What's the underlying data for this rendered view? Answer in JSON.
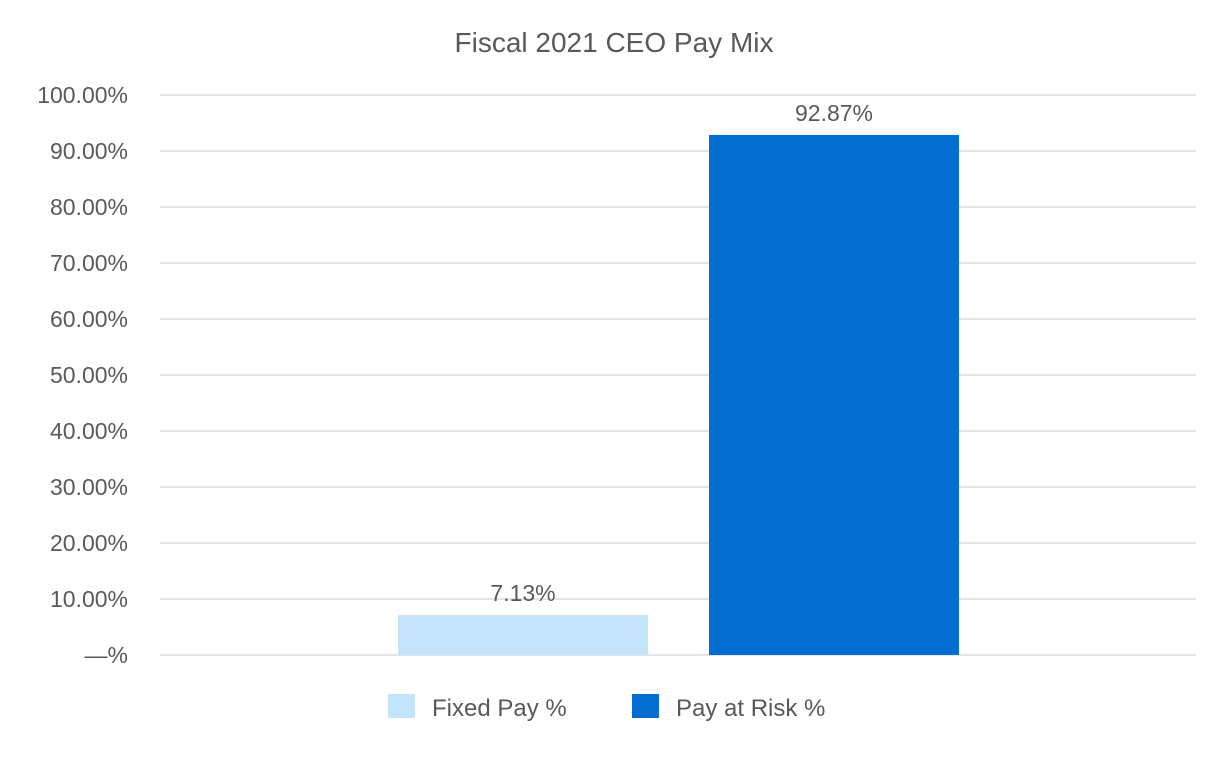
{
  "chart_data": {
    "type": "bar",
    "title": "Fiscal 2021 CEO Pay Mix",
    "xlabel": "",
    "ylabel": "",
    "ylim": [
      0,
      100
    ],
    "y_ticks": [
      {
        "value": 0,
        "label": "—%"
      },
      {
        "value": 10,
        "label": "10.00%"
      },
      {
        "value": 20,
        "label": "20.00%"
      },
      {
        "value": 30,
        "label": "30.00%"
      },
      {
        "value": 40,
        "label": "40.00%"
      },
      {
        "value": 50,
        "label": "50.00%"
      },
      {
        "value": 60,
        "label": "60.00%"
      },
      {
        "value": 70,
        "label": "70.00%"
      },
      {
        "value": 80,
        "label": "80.00%"
      },
      {
        "value": 90,
        "label": "90.00%"
      },
      {
        "value": 100,
        "label": "100.00%"
      }
    ],
    "grid": true,
    "legend_position": "bottom",
    "series": [
      {
        "name": "Fixed Pay %",
        "value": 7.13,
        "label": "7.13%",
        "color": "#c3e4fb"
      },
      {
        "name": "Pay at Risk %",
        "value": 92.87,
        "label": "92.87%",
        "color": "#036dd1"
      }
    ]
  }
}
